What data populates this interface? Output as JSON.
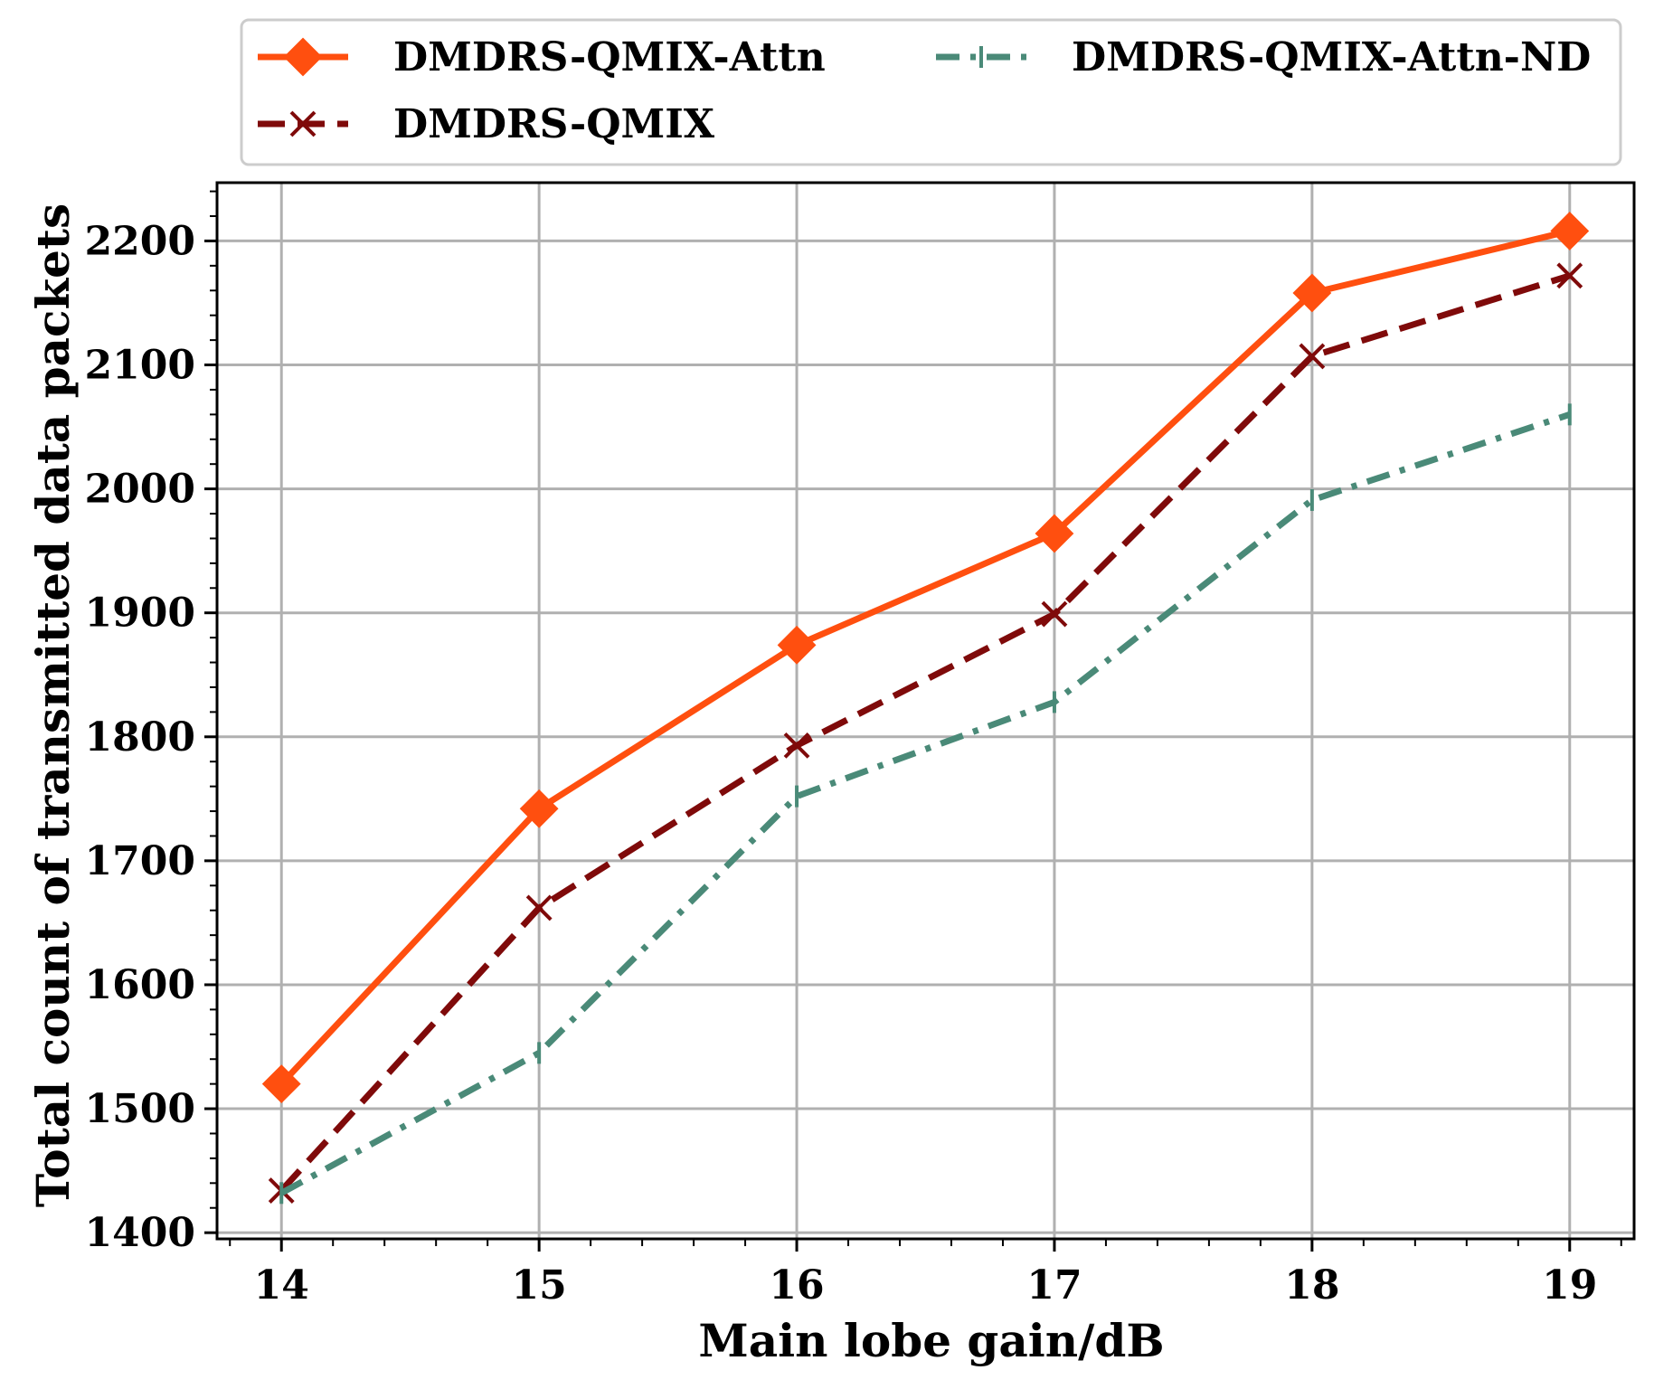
{
  "chart_data": {
    "type": "line",
    "title": "",
    "xlabel": "Main lobe gain/dB",
    "ylabel": "Total count of transmitted data packets",
    "x": [
      14,
      15,
      16,
      17,
      18,
      19
    ],
    "xticks": [
      "14",
      "15",
      "16",
      "17",
      "18",
      "19"
    ],
    "xlim": [
      13.75,
      19.25
    ],
    "yticks": [
      "1400",
      "1500",
      "1600",
      "1700",
      "1800",
      "1900",
      "2000",
      "2100",
      "2200"
    ],
    "ylim": [
      1395,
      2247
    ],
    "grid": true,
    "legend_position": "top",
    "series": [
      {
        "name": "DMDRS-QMIX-Attn",
        "color": "#ff4f0f",
        "linestyle": "solid",
        "marker": "diamond",
        "values": [
          1520,
          1742,
          1874,
          1964,
          2158,
          2208
        ]
      },
      {
        "name": "DMDRS-QMIX",
        "color": "#7f0a0a",
        "linestyle": "dashed",
        "marker": "x",
        "values": [
          1434,
          1662,
          1793,
          1899,
          2107,
          2172
        ]
      },
      {
        "name": "DMDRS-QMIX-Attn-ND",
        "color": "#4a8a78",
        "linestyle": "dashdot",
        "marker": "tick",
        "values": [
          1432,
          1545,
          1752,
          1828,
          1991,
          2060
        ]
      }
    ]
  }
}
